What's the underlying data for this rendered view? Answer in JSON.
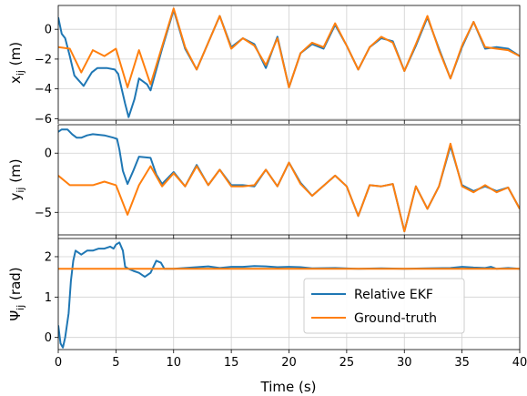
{
  "chart_data": {
    "type": "line",
    "xlabel": "Time (s)",
    "xlim": [
      0,
      40
    ],
    "xticks": [
      0,
      5,
      10,
      15,
      20,
      25,
      30,
      35,
      40
    ],
    "grid": true,
    "legend": {
      "placement": "lower-right of bottom panel",
      "entries": [
        "Relative EKF",
        "Ground-truth"
      ]
    },
    "colors": {
      "Relative EKF": "#1f77b4",
      "Ground-truth": "#ff7f0e"
    },
    "panels": [
      {
        "ylabel_base": "x",
        "ylabel_sub": "ij",
        "ylabel_unit": "(m)",
        "ylim": [
          -6.1,
          1.6
        ],
        "yticks": [
          -6,
          -4,
          -2,
          0
        ],
        "series": [
          {
            "name": "Relative EKF",
            "points": [
              [
                0,
                0.8
              ],
              [
                0.3,
                -0.3
              ],
              [
                0.6,
                -0.6
              ],
              [
                1,
                -1.8
              ],
              [
                1.4,
                -3.1
              ],
              [
                2.2,
                -3.8
              ],
              [
                2.9,
                -2.9
              ],
              [
                3.4,
                -2.6
              ],
              [
                4.2,
                -2.6
              ],
              [
                4.9,
                -2.7
              ],
              [
                5.2,
                -3.0
              ],
              [
                5.8,
                -5.0
              ],
              [
                6.1,
                -5.9
              ],
              [
                6.6,
                -4.7
              ],
              [
                7,
                -3.3
              ],
              [
                7.7,
                -3.7
              ],
              [
                8,
                -4.1
              ],
              [
                9,
                -1.3
              ],
              [
                10,
                1.3
              ],
              [
                11,
                -1.3
              ],
              [
                12,
                -2.7
              ],
              [
                14,
                0.9
              ],
              [
                15,
                -1.2
              ],
              [
                16,
                -0.6
              ],
              [
                17,
                -1.0
              ],
              [
                18,
                -2.6
              ],
              [
                19,
                -0.5
              ],
              [
                20,
                -3.9
              ],
              [
                21,
                -1.6
              ],
              [
                22,
                -1.0
              ],
              [
                23,
                -1.3
              ],
              [
                24,
                0.3
              ],
              [
                25,
                -1.1
              ],
              [
                26,
                -2.7
              ],
              [
                27,
                -1.2
              ],
              [
                28,
                -0.6
              ],
              [
                29,
                -0.8
              ],
              [
                30,
                -2.8
              ],
              [
                31,
                -1.1
              ],
              [
                32,
                0.8
              ],
              [
                33,
                -1.3
              ],
              [
                34,
                -3.3
              ],
              [
                35,
                -1.2
              ],
              [
                36,
                0.5
              ],
              [
                37,
                -1.3
              ],
              [
                38,
                -1.2
              ],
              [
                39,
                -1.3
              ],
              [
                40,
                -1.8
              ]
            ]
          },
          {
            "name": "Ground-truth",
            "points": [
              [
                0,
                -1.2
              ],
              [
                1,
                -1.3
              ],
              [
                2,
                -2.9
              ],
              [
                3,
                -1.4
              ],
              [
                4,
                -1.8
              ],
              [
                5,
                -1.3
              ],
              [
                6,
                -3.9
              ],
              [
                7,
                -1.4
              ],
              [
                8,
                -3.7
              ],
              [
                10,
                1.4
              ],
              [
                11,
                -1.2
              ],
              [
                12,
                -2.7
              ],
              [
                14,
                0.9
              ],
              [
                15,
                -1.3
              ],
              [
                16,
                -0.6
              ],
              [
                17,
                -1.1
              ],
              [
                18,
                -2.4
              ],
              [
                19,
                -0.6
              ],
              [
                20,
                -3.9
              ],
              [
                21,
                -1.6
              ],
              [
                22,
                -0.9
              ],
              [
                23,
                -1.2
              ],
              [
                24,
                0.4
              ],
              [
                25,
                -1.1
              ],
              [
                26,
                -2.7
              ],
              [
                27,
                -1.2
              ],
              [
                28,
                -0.5
              ],
              [
                29,
                -0.9
              ],
              [
                30,
                -2.8
              ],
              [
                31,
                -1.0
              ],
              [
                32,
                0.9
              ],
              [
                33,
                -1.4
              ],
              [
                34,
                -3.3
              ],
              [
                35,
                -1.1
              ],
              [
                36,
                0.5
              ],
              [
                37,
                -1.2
              ],
              [
                38,
                -1.3
              ],
              [
                39,
                -1.4
              ],
              [
                40,
                -1.8
              ]
            ]
          }
        ]
      },
      {
        "ylabel_base": "y",
        "ylabel_sub": "ij",
        "ylabel_unit": "(m)",
        "ylim": [
          -6.9,
          2.4
        ],
        "yticks": [
          -5,
          0
        ],
        "series": [
          {
            "name": "Relative EKF",
            "points": [
              [
                0,
                1.8
              ],
              [
                0.3,
                2.0
              ],
              [
                0.8,
                2.0
              ],
              [
                1.2,
                1.6
              ],
              [
                1.6,
                1.3
              ],
              [
                2,
                1.3
              ],
              [
                2.5,
                1.5
              ],
              [
                3,
                1.6
              ],
              [
                4,
                1.5
              ],
              [
                4.8,
                1.3
              ],
              [
                5.1,
                1.2
              ],
              [
                5.3,
                0.3
              ],
              [
                5.6,
                -1.5
              ],
              [
                6,
                -2.6
              ],
              [
                6.5,
                -1.5
              ],
              [
                7,
                -0.3
              ],
              [
                8,
                -0.4
              ],
              [
                8.5,
                -1.8
              ],
              [
                9,
                -2.6
              ],
              [
                10,
                -1.6
              ],
              [
                11,
                -2.8
              ],
              [
                12,
                -1.0
              ],
              [
                13,
                -2.7
              ],
              [
                14,
                -1.4
              ],
              [
                15,
                -2.7
              ],
              [
                16,
                -2.7
              ],
              [
                17,
                -2.8
              ],
              [
                18,
                -1.4
              ],
              [
                19,
                -2.8
              ],
              [
                20,
                -0.8
              ],
              [
                21,
                -2.5
              ],
              [
                22,
                -3.6
              ],
              [
                24,
                -1.9
              ],
              [
                25,
                -2.8
              ],
              [
                26,
                -5.3
              ],
              [
                27,
                -2.7
              ],
              [
                28,
                -2.8
              ],
              [
                29,
                -2.6
              ],
              [
                30,
                -6.6
              ],
              [
                31,
                -2.8
              ],
              [
                32,
                -4.7
              ],
              [
                33,
                -2.8
              ],
              [
                34,
                0.6
              ],
              [
                35,
                -2.7
              ],
              [
                36,
                -3.2
              ],
              [
                37,
                -2.8
              ],
              [
                38,
                -3.2
              ],
              [
                39,
                -2.9
              ],
              [
                40,
                -4.7
              ]
            ]
          },
          {
            "name": "Ground-truth",
            "points": [
              [
                0,
                -1.9
              ],
              [
                1,
                -2.7
              ],
              [
                2,
                -2.7
              ],
              [
                3,
                -2.7
              ],
              [
                4,
                -2.4
              ],
              [
                5,
                -2.7
              ],
              [
                6,
                -5.2
              ],
              [
                7,
                -2.7
              ],
              [
                8,
                -1.1
              ],
              [
                9,
                -2.8
              ],
              [
                10,
                -1.7
              ],
              [
                11,
                -2.8
              ],
              [
                12,
                -1.1
              ],
              [
                13,
                -2.7
              ],
              [
                14,
                -1.4
              ],
              [
                15,
                -2.8
              ],
              [
                16,
                -2.8
              ],
              [
                17,
                -2.7
              ],
              [
                18,
                -1.4
              ],
              [
                19,
                -2.8
              ],
              [
                20,
                -0.8
              ],
              [
                21,
                -2.6
              ],
              [
                22,
                -3.6
              ],
              [
                24,
                -1.9
              ],
              [
                25,
                -2.8
              ],
              [
                26,
                -5.3
              ],
              [
                27,
                -2.7
              ],
              [
                28,
                -2.8
              ],
              [
                29,
                -2.6
              ],
              [
                30,
                -6.6
              ],
              [
                31,
                -2.8
              ],
              [
                32,
                -4.7
              ],
              [
                33,
                -2.8
              ],
              [
                34,
                0.8
              ],
              [
                35,
                -2.8
              ],
              [
                36,
                -3.3
              ],
              [
                37,
                -2.7
              ],
              [
                38,
                -3.3
              ],
              [
                39,
                -2.9
              ],
              [
                40,
                -4.7
              ]
            ]
          }
        ]
      },
      {
        "ylabel_base": "Ψ",
        "ylabel_sub": "ij",
        "ylabel_unit": "(rad)",
        "ylim": [
          -0.3,
          2.45
        ],
        "yticks": [
          0,
          1,
          2
        ],
        "series": [
          {
            "name": "Relative EKF",
            "points": [
              [
                0,
                0.3
              ],
              [
                0.2,
                -0.15
              ],
              [
                0.4,
                -0.25
              ],
              [
                0.6,
                0.0
              ],
              [
                0.9,
                0.6
              ],
              [
                1.1,
                1.4
              ],
              [
                1.3,
                1.9
              ],
              [
                1.5,
                2.15
              ],
              [
                2,
                2.05
              ],
              [
                2.5,
                2.15
              ],
              [
                3,
                2.15
              ],
              [
                3.5,
                2.2
              ],
              [
                4,
                2.2
              ],
              [
                4.5,
                2.25
              ],
              [
                4.8,
                2.2
              ],
              [
                5,
                2.3
              ],
              [
                5.3,
                2.35
              ],
              [
                5.6,
                2.15
              ],
              [
                5.8,
                1.75
              ],
              [
                6.1,
                1.7
              ],
              [
                6.5,
                1.65
              ],
              [
                7,
                1.6
              ],
              [
                7.5,
                1.5
              ],
              [
                8,
                1.6
              ],
              [
                8.5,
                1.9
              ],
              [
                8.9,
                1.85
              ],
              [
                9.2,
                1.7
              ],
              [
                10,
                1.7
              ],
              [
                11,
                1.72
              ],
              [
                12,
                1.74
              ],
              [
                13,
                1.76
              ],
              [
                14,
                1.72
              ],
              [
                15,
                1.75
              ],
              [
                16,
                1.75
              ],
              [
                17,
                1.77
              ],
              [
                18,
                1.76
              ],
              [
                19,
                1.74
              ],
              [
                20,
                1.75
              ],
              [
                21,
                1.74
              ],
              [
                22,
                1.71
              ],
              [
                24,
                1.72
              ],
              [
                26,
                1.7
              ],
              [
                28,
                1.71
              ],
              [
                30,
                1.7
              ],
              [
                32,
                1.71
              ],
              [
                34,
                1.72
              ],
              [
                35,
                1.75
              ],
              [
                36,
                1.73
              ],
              [
                37,
                1.72
              ],
              [
                37.5,
                1.75
              ],
              [
                38,
                1.7
              ],
              [
                39,
                1.72
              ],
              [
                40,
                1.7
              ]
            ]
          },
          {
            "name": "Ground-truth",
            "points": [
              [
                0,
                1.7
              ],
              [
                40,
                1.7
              ]
            ]
          }
        ]
      }
    ]
  }
}
